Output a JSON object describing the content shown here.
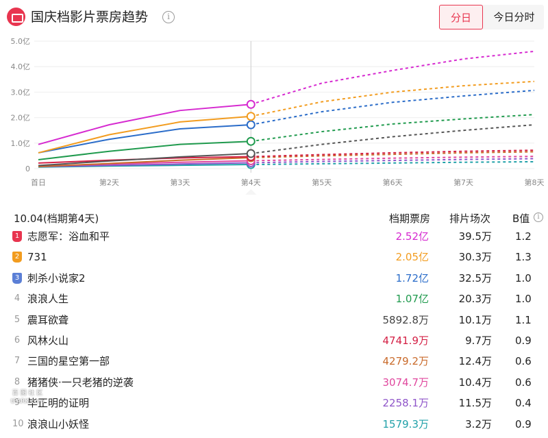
{
  "header": {
    "title": "国庆档影片票房趋势",
    "tabs": [
      {
        "label": "分日",
        "active": true
      },
      {
        "label": "今日分时",
        "active": false
      }
    ]
  },
  "chart_data": {
    "type": "line",
    "x": [
      "首日",
      "第2天",
      "第3天",
      "第4天",
      "第5天",
      "第6天",
      "第7天",
      "第8天"
    ],
    "y_ticks": [
      "5.0亿",
      "4.0亿",
      "3.0亿",
      "2.0亿",
      "1.0亿",
      "0"
    ],
    "ylim": [
      0,
      5.0
    ],
    "current_index": 3,
    "note": "solid lines = actual, dashed lines = forecast",
    "series": [
      {
        "name": "志愿军：浴血和平",
        "color": "#d62ad0",
        "values": [
          0.95,
          1.72,
          2.28,
          2.52,
          3.35,
          3.85,
          4.3,
          4.6
        ]
      },
      {
        "name": "731",
        "color": "#f29c1f",
        "values": [
          0.62,
          1.33,
          1.83,
          2.05,
          2.62,
          3.0,
          3.25,
          3.42
        ]
      },
      {
        "name": "刺杀小说家2",
        "color": "#2a6cc9",
        "values": [
          0.62,
          1.15,
          1.56,
          1.72,
          2.23,
          2.6,
          2.85,
          3.07
        ]
      },
      {
        "name": "浪浪人生",
        "color": "#1f9a4d",
        "values": [
          0.35,
          0.68,
          0.95,
          1.07,
          1.45,
          1.75,
          1.95,
          2.12
        ]
      },
      {
        "name": "震耳欲聋",
        "color": "#555555",
        "values": [
          0.12,
          0.3,
          0.46,
          0.59,
          0.95,
          1.25,
          1.5,
          1.72
        ]
      },
      {
        "name": "风林火山",
        "color": "#d42045",
        "values": [
          0.22,
          0.33,
          0.42,
          0.47,
          0.55,
          0.62,
          0.68,
          0.72
        ]
      },
      {
        "name": "三国的星空第一部",
        "color": "#c96a2a",
        "values": [
          0.08,
          0.2,
          0.33,
          0.43,
          0.5,
          0.56,
          0.62,
          0.66
        ]
      },
      {
        "name": "猪猪侠·一只老猪的逆袭",
        "color": "#e0489e",
        "values": [
          0.1,
          0.18,
          0.25,
          0.31,
          0.36,
          0.41,
          0.45,
          0.48
        ]
      },
      {
        "name": "毕正明的证明",
        "color": "#8f55c9",
        "values": [
          0.08,
          0.13,
          0.18,
          0.23,
          0.28,
          0.32,
          0.36,
          0.39
        ]
      },
      {
        "name": "浪浪山小妖怪",
        "color": "#1fa0a8",
        "values": [
          0.06,
          0.1,
          0.13,
          0.16,
          0.19,
          0.22,
          0.25,
          0.27
        ]
      }
    ]
  },
  "table": {
    "date_label": "10.04(档期第4天)",
    "col_box": "档期票房",
    "col_show": "排片场次",
    "col_b": "B值",
    "rows": [
      {
        "rank": "1",
        "name": "志愿军：浴血和平",
        "box": "2.52亿",
        "box_color": "#d62ad0",
        "shows": "39.5万",
        "b": "1.2",
        "badge_color": "#e8354f"
      },
      {
        "rank": "2",
        "name": "731",
        "box": "2.05亿",
        "box_color": "#f29c1f",
        "shows": "30.3万",
        "b": "1.3",
        "badge_color": "#f29c1f"
      },
      {
        "rank": "3",
        "name": "刺杀小说家2",
        "box": "1.72亿",
        "box_color": "#2a6cc9",
        "shows": "32.5万",
        "b": "1.0",
        "badge_color": "#5b7fd6"
      },
      {
        "rank": "4",
        "name": "浪浪人生",
        "box": "1.07亿",
        "box_color": "#1f9a4d",
        "shows": "20.3万",
        "b": "1.0"
      },
      {
        "rank": "5",
        "name": "震耳欲聋",
        "box": "5892.8万",
        "box_color": "#444444",
        "shows": "10.1万",
        "b": "1.1"
      },
      {
        "rank": "6",
        "name": "风林火山",
        "box": "4741.9万",
        "box_color": "#d42045",
        "shows": "9.7万",
        "b": "0.9"
      },
      {
        "rank": "7",
        "name": "三国的星空第一部",
        "box": "4279.2万",
        "box_color": "#c96a2a",
        "shows": "12.4万",
        "b": "0.6"
      },
      {
        "rank": "8",
        "name": "猪猪侠·一只老猪的逆袭",
        "box": "3074.7万",
        "box_color": "#e0489e",
        "shows": "10.4万",
        "b": "0.6"
      },
      {
        "rank": "9",
        "name": "毕正明的证明",
        "box": "2258.1万",
        "box_color": "#8f55c9",
        "shows": "11.5万",
        "b": "0.4"
      },
      {
        "rank": "10",
        "name": "浪浪山小妖怪",
        "box": "1579.3万",
        "box_color": "#1fa0a8",
        "shows": "3.2万",
        "b": "0.9"
      }
    ]
  },
  "watermark": {
    "line1": "百 图 社 区",
    "line2": "tPARK.com"
  }
}
